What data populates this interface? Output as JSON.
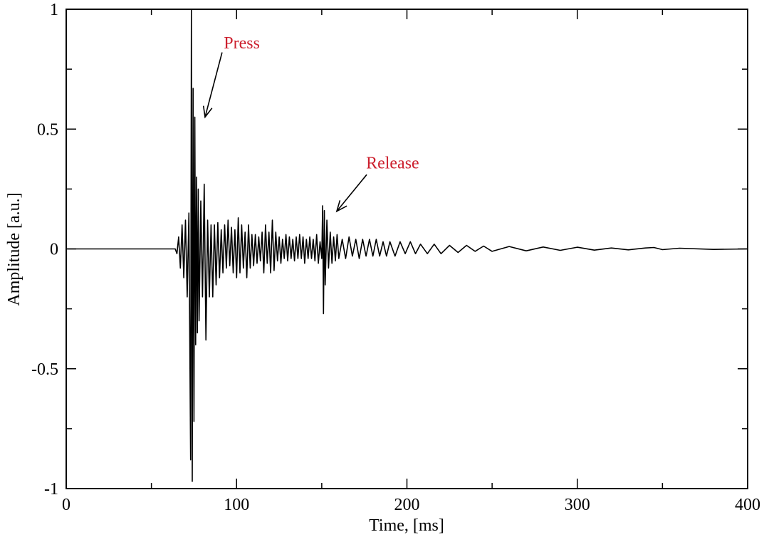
{
  "chart_data": {
    "type": "line",
    "title": "",
    "xlabel": "Time, [ms]",
    "ylabel": "Amplitude [a.u.]",
    "xlim": [
      0,
      400
    ],
    "ylim": [
      -1,
      1
    ],
    "x_ticks": [
      0,
      100,
      200,
      300,
      400
    ],
    "x_tick_labels": [
      "0",
      "100",
      "200",
      "300",
      "400"
    ],
    "x_minor_ticks": [
      50,
      150,
      250,
      350
    ],
    "y_ticks": [
      -1,
      -0.5,
      0,
      0.5,
      1
    ],
    "y_tick_labels": [
      "-1",
      "-0.5",
      "0",
      "0.5",
      "1"
    ],
    "y_minor_ticks": [
      -0.75,
      -0.25,
      0.25,
      0.75
    ],
    "grid": false,
    "line_color": "#000000",
    "annotation_color": "#cc1f2d",
    "annotations": [
      {
        "text": "Press",
        "text_at": [
          92.5,
          0.86
        ],
        "arrow_from": [
          91.5,
          0.82
        ],
        "arrow_to": [
          81.5,
          0.55
        ]
      },
      {
        "text": "Release",
        "text_at": [
          176,
          0.36
        ],
        "arrow_from": [
          176.4,
          0.31
        ],
        "arrow_to": [
          158.8,
          0.157
        ]
      }
    ],
    "series": [
      {
        "points": [
          [
            0,
            0
          ],
          [
            64,
            0
          ],
          [
            65,
            -0.02
          ],
          [
            66,
            0.05
          ],
          [
            67,
            -0.08
          ],
          [
            68,
            0.1
          ],
          [
            69,
            -0.12
          ],
          [
            70,
            0.12
          ],
          [
            71,
            -0.2
          ],
          [
            72,
            0.15
          ],
          [
            73,
            -0.88
          ],
          [
            73.5,
            1.0
          ],
          [
            74,
            -0.97
          ],
          [
            74.5,
            0.67
          ],
          [
            75,
            -0.72
          ],
          [
            75.5,
            0.55
          ],
          [
            76,
            -0.4
          ],
          [
            76.5,
            0.3
          ],
          [
            77,
            -0.35
          ],
          [
            77.5,
            0.25
          ],
          [
            78,
            -0.3
          ],
          [
            79,
            0.2
          ],
          [
            80,
            -0.2
          ],
          [
            81,
            0.27
          ],
          [
            82,
            -0.38
          ],
          [
            83,
            0.12
          ],
          [
            84,
            -0.2
          ],
          [
            85,
            0.1
          ],
          [
            86,
            -0.2
          ],
          [
            87,
            0.1
          ],
          [
            88,
            -0.15
          ],
          [
            89,
            0.11
          ],
          [
            90,
            -0.12
          ],
          [
            91,
            0.08
          ],
          [
            92,
            -0.1
          ],
          [
            93,
            0.1
          ],
          [
            94,
            -0.08
          ],
          [
            95,
            0.12
          ],
          [
            96,
            -0.07
          ],
          [
            97,
            0.09
          ],
          [
            98,
            -0.1
          ],
          [
            99,
            0.08
          ],
          [
            100,
            -0.12
          ],
          [
            101,
            0.13
          ],
          [
            102,
            -0.1
          ],
          [
            103,
            0.1
          ],
          [
            104,
            -0.08
          ],
          [
            105,
            0.07
          ],
          [
            106,
            -0.12
          ],
          [
            107,
            0.1
          ],
          [
            108,
            -0.08
          ],
          [
            109,
            0.06
          ],
          [
            110,
            -0.07
          ],
          [
            111,
            0.06
          ],
          [
            112,
            -0.06
          ],
          [
            113,
            0.05
          ],
          [
            114,
            -0.05
          ],
          [
            115,
            0.07
          ],
          [
            116,
            -0.1
          ],
          [
            117,
            0.1
          ],
          [
            118,
            -0.06
          ],
          [
            119,
            0.07
          ],
          [
            120,
            -0.1
          ],
          [
            121,
            0.12
          ],
          [
            122,
            -0.09
          ],
          [
            123,
            0.07
          ],
          [
            124,
            -0.05
          ],
          [
            125,
            0.05
          ],
          [
            126,
            -0.06
          ],
          [
            127,
            0.04
          ],
          [
            128,
            -0.04
          ],
          [
            129,
            0.06
          ],
          [
            130,
            -0.05
          ],
          [
            131,
            0.05
          ],
          [
            132,
            -0.04
          ],
          [
            133,
            0.04
          ],
          [
            134,
            -0.05
          ],
          [
            135,
            0.05
          ],
          [
            136,
            -0.04
          ],
          [
            137,
            0.06
          ],
          [
            138,
            -0.04
          ],
          [
            139,
            0.05
          ],
          [
            140,
            -0.06
          ],
          [
            141,
            0.04
          ],
          [
            142,
            -0.04
          ],
          [
            143,
            0.05
          ],
          [
            144,
            -0.04
          ],
          [
            145,
            0.04
          ],
          [
            146,
            -0.05
          ],
          [
            147,
            0.06
          ],
          [
            148,
            -0.06
          ],
          [
            149,
            0.03
          ],
          [
            150,
            -0.04
          ],
          [
            150.5,
            0.18
          ],
          [
            151,
            -0.27
          ],
          [
            151.5,
            0.16
          ],
          [
            152,
            -0.15
          ],
          [
            153,
            0.12
          ],
          [
            154,
            -0.08
          ],
          [
            155,
            0.07
          ],
          [
            156,
            -0.06
          ],
          [
            157,
            0.05
          ],
          [
            158,
            -0.05
          ],
          [
            159,
            0.06
          ],
          [
            160,
            -0.04
          ],
          [
            162,
            0.04
          ],
          [
            164,
            -0.04
          ],
          [
            166,
            0.05
          ],
          [
            168,
            -0.03
          ],
          [
            170,
            0.04
          ],
          [
            172,
            -0.04
          ],
          [
            174,
            0.04
          ],
          [
            176,
            -0.03
          ],
          [
            178,
            0.04
          ],
          [
            180,
            -0.03
          ],
          [
            182,
            0.04
          ],
          [
            184,
            -0.03
          ],
          [
            186,
            0.03
          ],
          [
            188,
            -0.03
          ],
          [
            190,
            0.03
          ],
          [
            193,
            -0.03
          ],
          [
            196,
            0.03
          ],
          [
            199,
            -0.02
          ],
          [
            202,
            0.03
          ],
          [
            205,
            -0.02
          ],
          [
            208,
            0.02
          ],
          [
            212,
            -0.02
          ],
          [
            216,
            0.02
          ],
          [
            220,
            -0.02
          ],
          [
            225,
            0.015
          ],
          [
            230,
            -0.015
          ],
          [
            235,
            0.015
          ],
          [
            240,
            -0.01
          ],
          [
            245,
            0.012
          ],
          [
            250,
            -0.01
          ],
          [
            260,
            0.01
          ],
          [
            270,
            -0.008
          ],
          [
            280,
            0.008
          ],
          [
            290,
            -0.006
          ],
          [
            300,
            0.007
          ],
          [
            310,
            -0.005
          ],
          [
            320,
            0.004
          ],
          [
            330,
            -0.004
          ],
          [
            340,
            0.004
          ],
          [
            345,
            0.006
          ],
          [
            350,
            -0.003
          ],
          [
            360,
            0.003
          ],
          [
            380,
            -0.002
          ],
          [
            400,
            0
          ]
        ]
      }
    ]
  }
}
